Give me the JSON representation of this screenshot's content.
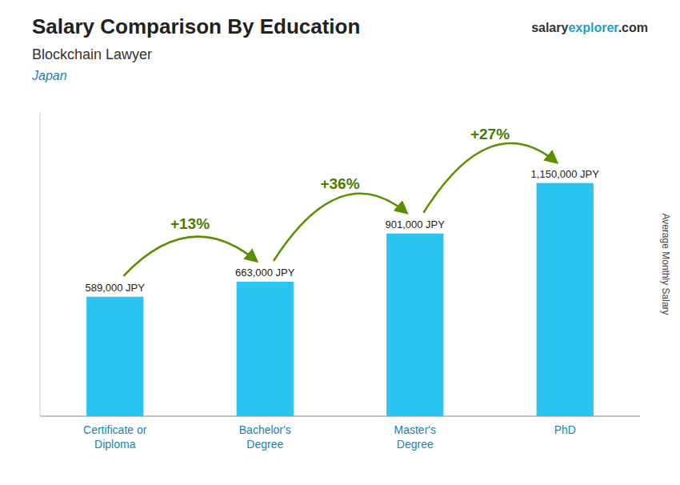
{
  "chart_data": {
    "type": "bar",
    "title": "Salary Comparison By Education",
    "subtitle": "Blockchain Lawyer",
    "country": "Japan",
    "brand": [
      "salary",
      "explorer",
      ".com"
    ],
    "ylabel": "Average Monthly Salary",
    "categories": [
      "Certificate or\nDiploma",
      "Bachelor's\nDegree",
      "Master's\nDegree",
      "PhD"
    ],
    "values": [
      589000,
      663000,
      901000,
      1150000
    ],
    "value_labels": [
      "589,000 JPY",
      "663,000 JPY",
      "901,000 JPY",
      "1,150,000 JPY"
    ],
    "data_labels": true,
    "annotations": [
      "+13%",
      "+36%",
      "+27%"
    ],
    "color": "#29c4f0",
    "ylim": [
      0,
      1500000
    ],
    "tick_labels": "x",
    "grid": false
  }
}
